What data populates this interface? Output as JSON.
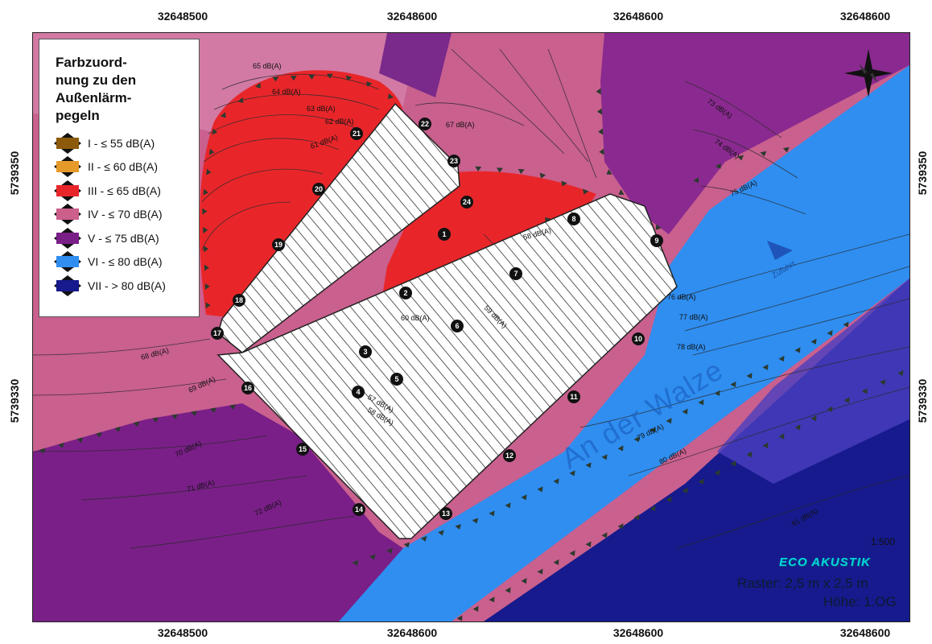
{
  "axes": {
    "x_top": [
      "32648500",
      "32648600",
      "32648600",
      "32648600"
    ],
    "x_bottom": [
      "32648500",
      "32648600",
      "32648600",
      "32648600"
    ],
    "y_left": [
      "5739350",
      "5739330"
    ],
    "y_right": [
      "5739350",
      "5739330"
    ]
  },
  "legend": {
    "title": "Farbzuord-\nnung zu den\nAußenlärm-\npegeln",
    "items": [
      {
        "label": "I - ≤ 55 dB(A)",
        "color": "#8c5a0a"
      },
      {
        "label": "II - ≤ 60 dB(A)",
        "color": "#e69a2a"
      },
      {
        "label": "III - ≤ 65 dB(A)",
        "color": "#e8262a"
      },
      {
        "label": "IV - ≤ 70 dB(A)",
        "color": "#cc5f8c"
      },
      {
        "label": "V - ≤ 75 dB(A)",
        "color": "#7a1f88"
      },
      {
        "label": "VI - ≤ 80 dB(A)",
        "color": "#2f8ef0"
      },
      {
        "label": "VII - > 80 dB(A)",
        "color": "#161a8c"
      }
    ]
  },
  "contour_labels": [
    "65 dB(A)",
    "64 dB(A)",
    "63 dB(A)",
    "62 dB(A)",
    "61 dB(A)",
    "67 dB(A)",
    "73 dB(A)",
    "74 dB(A)",
    "75 dB(A)",
    "58 dB(A)",
    "59 dB(A)",
    "60 dB(A)",
    "76 dB(A)",
    "77 dB(A)",
    "78 dB(A)",
    "68 dB(A)",
    "69 dB(A)",
    "57 dB(A)",
    "58 dB(A)",
    "79 dB(A)",
    "80 dB(A)",
    "70 dB(A)",
    "71 dB(A)",
    "72 dB(A)",
    "81 dB(A)"
  ],
  "points": [
    "1",
    "2",
    "3",
    "4",
    "5",
    "6",
    "7",
    "8",
    "9",
    "10",
    "11",
    "12",
    "13",
    "14",
    "15",
    "16",
    "17",
    "18",
    "19",
    "20",
    "21",
    "22",
    "23",
    "24"
  ],
  "street_name": "An der Walze",
  "direction_label": "Zufahrt",
  "scale": "1:500",
  "brand": "ECO AKUSTIK",
  "raster": "Raster: 2,5 m  x 2,5 m",
  "hoehe": "Höhe: 1.OG",
  "icons": [
    "north-arrow-icon",
    "direction-arrow-icon",
    "barrier-triangle-icon",
    "hatched-building-icon"
  ]
}
